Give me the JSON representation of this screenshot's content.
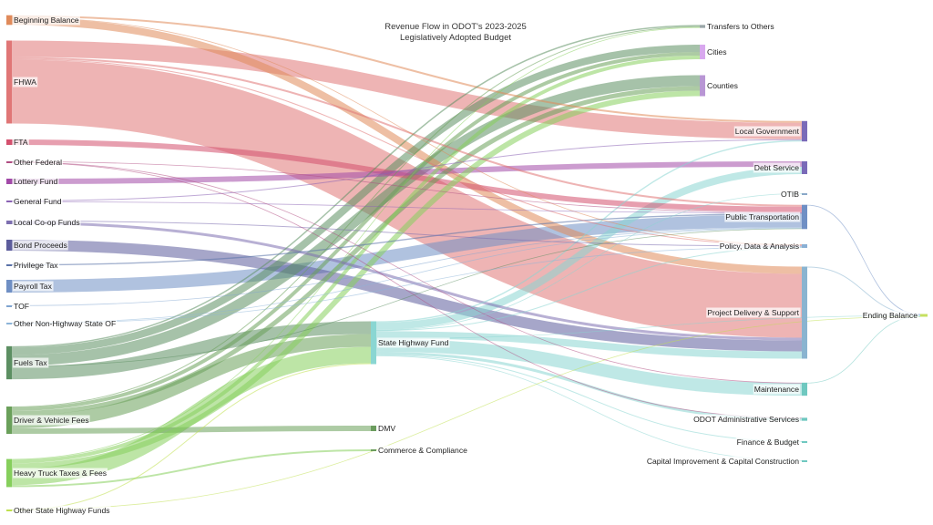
{
  "chart_data": {
    "type": "sankey",
    "title_lines": [
      "Revenue Flow in ODOT's 2023-2025",
      "Legislatively Adopted Budget"
    ],
    "nodes": [
      {
        "id": "beginning_balance",
        "label": "Beginning Balance",
        "column": 0,
        "color": "#e08a5a"
      },
      {
        "id": "fhwa",
        "label": "FHWA",
        "column": 0,
        "color": "#e07676"
      },
      {
        "id": "fta",
        "label": "FTA",
        "column": 0,
        "color": "#d4506e"
      },
      {
        "id": "other_federal",
        "label": "Other Federal",
        "column": 0,
        "color": "#b04c82"
      },
      {
        "id": "lottery_fund",
        "label": "Lottery Fund",
        "column": 0,
        "color": "#a24aa8"
      },
      {
        "id": "general_fund",
        "label": "General Fund",
        "column": 0,
        "color": "#8a62b4"
      },
      {
        "id": "local_coop_funds",
        "label": "Local Co-op Funds",
        "column": 0,
        "color": "#7d6fb0"
      },
      {
        "id": "bond_proceeds",
        "label": "Bond Proceeds",
        "column": 0,
        "color": "#5c5c9c"
      },
      {
        "id": "privilege_tax",
        "label": "Privilege Tax",
        "column": 0,
        "color": "#5a72a8"
      },
      {
        "id": "payroll_tax",
        "label": "Payroll Tax",
        "column": 0,
        "color": "#6f8fc4"
      },
      {
        "id": "tof",
        "label": "TOF",
        "column": 0,
        "color": "#7fa4d0"
      },
      {
        "id": "other_non_highway_state_of",
        "label": "Other Non-Highway State OF",
        "column": 0,
        "color": "#8cb4d8"
      },
      {
        "id": "fuels_tax",
        "label": "Fuels Tax",
        "column": 0,
        "color": "#5c8f62"
      },
      {
        "id": "driver_vehicle_fees",
        "label": "Driver & Vehicle Fees",
        "column": 0,
        "color": "#6aa05a"
      },
      {
        "id": "heavy_truck_taxes_fees",
        "label": "Heavy Truck Taxes & Fees",
        "column": 0,
        "color": "#86cf5c"
      },
      {
        "id": "other_state_highway_funds",
        "label": "Other State Highway Funds",
        "column": 0,
        "color": "#bfe04e"
      },
      {
        "id": "state_highway_fund",
        "label": "State Highway Fund",
        "column": 1,
        "color": "#8ad6d2"
      },
      {
        "id": "dmv",
        "label": "DMV",
        "column": 1,
        "color": "#6b9c5e"
      },
      {
        "id": "commerce_compliance",
        "label": "Commerce & Compliance",
        "column": 1,
        "color": "#6b9c5e"
      },
      {
        "id": "transfers_to_others",
        "label": "Transfers to Others",
        "column": 2,
        "color": "#9aa6a8"
      },
      {
        "id": "cities",
        "label": "Cities",
        "column": 2,
        "color": "#d8a8ee"
      },
      {
        "id": "counties",
        "label": "Counties",
        "column": 2,
        "color": "#b896d4"
      },
      {
        "id": "local_government",
        "label": "Local Government",
        "column": 3,
        "color": "#7a6ab8"
      },
      {
        "id": "debt_service",
        "label": "Debt Service",
        "column": 3,
        "color": "#7a6ab8"
      },
      {
        "id": "otib",
        "label": "OTIB",
        "column": 3,
        "color": "#8aa8c8"
      },
      {
        "id": "public_transportation",
        "label": "Public Transportation",
        "column": 3,
        "color": "#6f8fc4"
      },
      {
        "id": "policy_data_analysis",
        "label": "Policy, Data & Analysis",
        "column": 3,
        "color": "#8ab0d4"
      },
      {
        "id": "project_delivery_support",
        "label": "Project Delivery & Support",
        "column": 3,
        "color": "#8ab4d0"
      },
      {
        "id": "maintenance",
        "label": "Maintenance",
        "column": 3,
        "color": "#6fc8c0"
      },
      {
        "id": "odot_administrative_services",
        "label": "ODOT Administrative Services",
        "column": 3,
        "color": "#6fc8c0"
      },
      {
        "id": "finance_budget",
        "label": "Finance & Budget",
        "column": 3,
        "color": "#6fc8c0"
      },
      {
        "id": "capital_improvement_construction",
        "label": "Capital Improvement & Capital Construction",
        "column": 3,
        "color": "#6fc8c0"
      },
      {
        "id": "ending_balance",
        "label": "Ending Balance",
        "column": 4,
        "color": "#c6e060"
      }
    ],
    "links": [
      {
        "source": "beginning_balance",
        "target": "project_delivery_support",
        "value": 8
      },
      {
        "source": "beginning_balance",
        "target": "local_government",
        "value": 2
      },
      {
        "source": "beginning_balance",
        "target": "policy_data_analysis",
        "value": 0.6
      },
      {
        "source": "fhwa",
        "target": "project_delivery_support",
        "value": 70
      },
      {
        "source": "fhwa",
        "target": "local_government",
        "value": 18
      },
      {
        "source": "fhwa",
        "target": "public_transportation",
        "value": 2
      },
      {
        "source": "fhwa",
        "target": "policy_data_analysis",
        "value": 1
      },
      {
        "source": "fta",
        "target": "public_transportation",
        "value": 6
      },
      {
        "source": "other_federal",
        "target": "public_transportation",
        "value": 0.5
      },
      {
        "source": "other_federal",
        "target": "maintenance",
        "value": 0.3
      },
      {
        "source": "other_federal",
        "target": "odot_administrative_services",
        "value": 0.3
      },
      {
        "source": "lottery_fund",
        "target": "debt_service",
        "value": 6
      },
      {
        "source": "general_fund",
        "target": "local_government",
        "value": 1
      },
      {
        "source": "general_fund",
        "target": "public_transportation",
        "value": 0.6
      },
      {
        "source": "local_coop_funds",
        "target": "project_delivery_support",
        "value": 3
      },
      {
        "source": "local_coop_funds",
        "target": "policy_data_analysis",
        "value": 1
      },
      {
        "source": "bond_proceeds",
        "target": "project_delivery_support",
        "value": 12
      },
      {
        "source": "privilege_tax",
        "target": "public_transportation",
        "value": 1.4
      },
      {
        "source": "payroll_tax",
        "target": "public_transportation",
        "value": 14
      },
      {
        "source": "tof",
        "target": "public_transportation",
        "value": 0.8
      },
      {
        "source": "other_non_highway_state_of",
        "target": "public_transportation",
        "value": 0.5
      },
      {
        "source": "other_non_highway_state_of",
        "target": "policy_data_analysis",
        "value": 0.5
      },
      {
        "source": "fuels_tax",
        "target": "state_highway_fund",
        "value": 14
      },
      {
        "source": "fuels_tax",
        "target": "cities",
        "value": 8
      },
      {
        "source": "fuels_tax",
        "target": "counties",
        "value": 12
      },
      {
        "source": "fuels_tax",
        "target": "transfers_to_others",
        "value": 1.5
      },
      {
        "source": "fuels_tax",
        "target": "public_transportation",
        "value": 0.8
      },
      {
        "source": "driver_vehicle_fees",
        "target": "state_highway_fund",
        "value": 14
      },
      {
        "source": "driver_vehicle_fees",
        "target": "dmv",
        "value": 6
      },
      {
        "source": "driver_vehicle_fees",
        "target": "cities",
        "value": 4
      },
      {
        "source": "driver_vehicle_fees",
        "target": "counties",
        "value": 5
      },
      {
        "source": "driver_vehicle_fees",
        "target": "transfers_to_others",
        "value": 1
      },
      {
        "source": "heavy_truck_taxes_fees",
        "target": "state_highway_fund",
        "value": 18
      },
      {
        "source": "heavy_truck_taxes_fees",
        "target": "cities",
        "value": 4
      },
      {
        "source": "heavy_truck_taxes_fees",
        "target": "counties",
        "value": 6
      },
      {
        "source": "heavy_truck_taxes_fees",
        "target": "commerce_compliance",
        "value": 2
      },
      {
        "source": "heavy_truck_taxes_fees",
        "target": "transfers_to_others",
        "value": 0.8
      },
      {
        "source": "other_state_highway_funds",
        "target": "state_highway_fund",
        "value": 1
      },
      {
        "source": "other_state_highway_funds",
        "target": "ending_balance",
        "value": 0.5
      },
      {
        "source": "state_highway_fund",
        "target": "project_delivery_support",
        "value": 8
      },
      {
        "source": "state_highway_fund",
        "target": "maintenance",
        "value": 14
      },
      {
        "source": "state_highway_fund",
        "target": "debt_service",
        "value": 8
      },
      {
        "source": "state_highway_fund",
        "target": "odot_administrative_services",
        "value": 3
      },
      {
        "source": "state_highway_fund",
        "target": "finance_budget",
        "value": 1
      },
      {
        "source": "state_highway_fund",
        "target": "capital_improvement_construction",
        "value": 0.6
      },
      {
        "source": "state_highway_fund",
        "target": "policy_data_analysis",
        "value": 1
      },
      {
        "source": "state_highway_fund",
        "target": "local_government",
        "value": 1.4
      },
      {
        "source": "state_highway_fund",
        "target": "otib",
        "value": 0.3
      },
      {
        "source": "state_highway_fund",
        "target": "ending_balance",
        "value": 0.7
      },
      {
        "source": "project_delivery_support",
        "target": "ending_balance",
        "value": 1
      },
      {
        "source": "public_transportation",
        "target": "ending_balance",
        "value": 0.5
      },
      {
        "source": "maintenance",
        "target": "ending_balance",
        "value": 0.3
      }
    ]
  }
}
